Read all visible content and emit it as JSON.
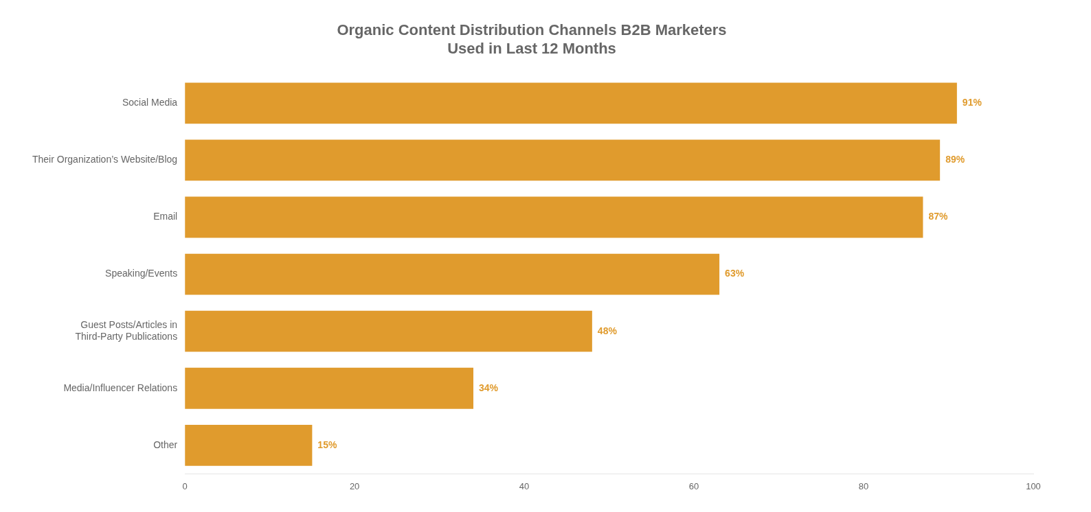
{
  "chart_data": {
    "type": "bar",
    "orientation": "horizontal",
    "title": "Organic Content Distribution Channels B2B Marketers\nUsed in Last 12 Months",
    "categories": [
      "Other",
      "Media/Influencer Relations",
      "Guest Posts/Articles in\nThird-Party Publications",
      "Speaking/Events",
      "Email",
      "Their Organization’s Website/Blog",
      "Social Media"
    ],
    "values": [
      15,
      34,
      48,
      63,
      87,
      89,
      91
    ],
    "value_labels": [
      "15%",
      "34%",
      "48%",
      "63%",
      "87%",
      "89%",
      "91%"
    ],
    "data_labels": true,
    "color": "#E09B2D",
    "xlim": [
      0,
      100
    ],
    "xticks": [
      0,
      20,
      40,
      60,
      80,
      100
    ],
    "grid": false
  }
}
